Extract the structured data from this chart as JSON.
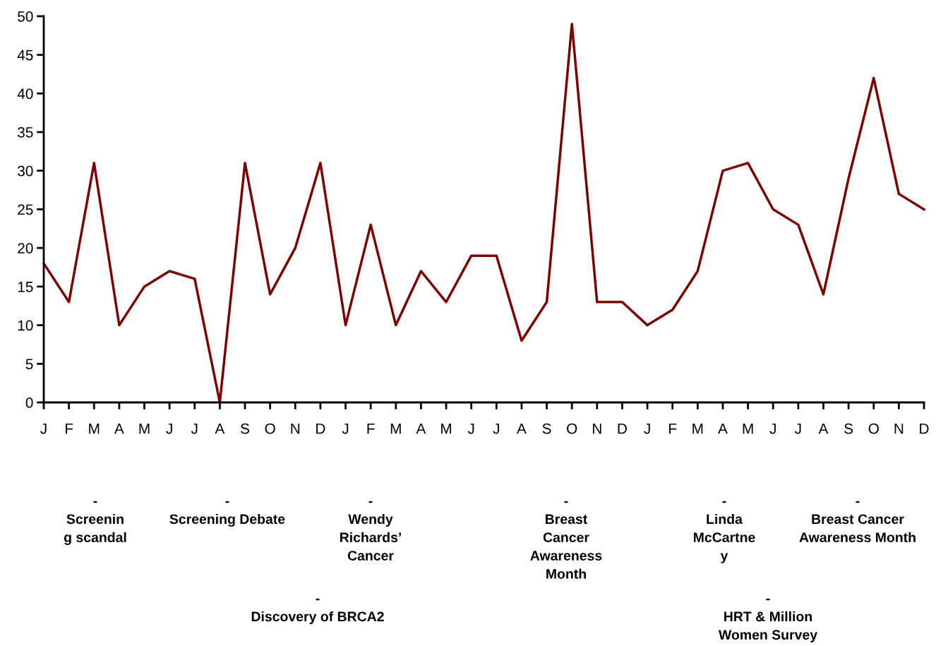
{
  "chart_data": {
    "type": "line",
    "categories": [
      "J",
      "F",
      "M",
      "A",
      "M",
      "J",
      "J",
      "A",
      "S",
      "O",
      "N",
      "D",
      "J",
      "F",
      "M",
      "A",
      "M",
      "J",
      "J",
      "A",
      "S",
      "O",
      "N",
      "D",
      "J",
      "F",
      "M",
      "A",
      "M",
      "J",
      "J",
      "A",
      "S",
      "O",
      "N",
      "D"
    ],
    "series": [
      {
        "color": "#800000",
        "values": [
          18,
          13,
          31,
          10,
          15,
          17,
          16,
          0,
          31,
          14,
          20,
          31,
          10,
          23,
          10,
          17,
          13,
          19,
          19,
          8,
          13,
          49,
          13,
          13,
          10,
          12,
          17,
          30,
          31,
          25,
          23,
          14,
          29,
          42,
          27,
          25
        ]
      }
    ],
    "ylim": [
      0,
      50
    ],
    "yticks": [
      0,
      5,
      10,
      15,
      20,
      25,
      30,
      35,
      40,
      45,
      50
    ],
    "grid": false,
    "marker": "none",
    "line_style": "solid",
    "annotations": [
      "-\nScreenin\ng scandal",
      "-\nScreening Debate",
      "-\nWendy\nRichards’\nCancer",
      "-\nBreast\nCancer\nAwareness\nMonth",
      "-\nLinda\nMcCartne\ny",
      "-\nBreast Cancer\nAwareness Month",
      "-\nDiscovery of BRCA2",
      "-\nHRT & Million\nWomen Survey"
    ]
  }
}
